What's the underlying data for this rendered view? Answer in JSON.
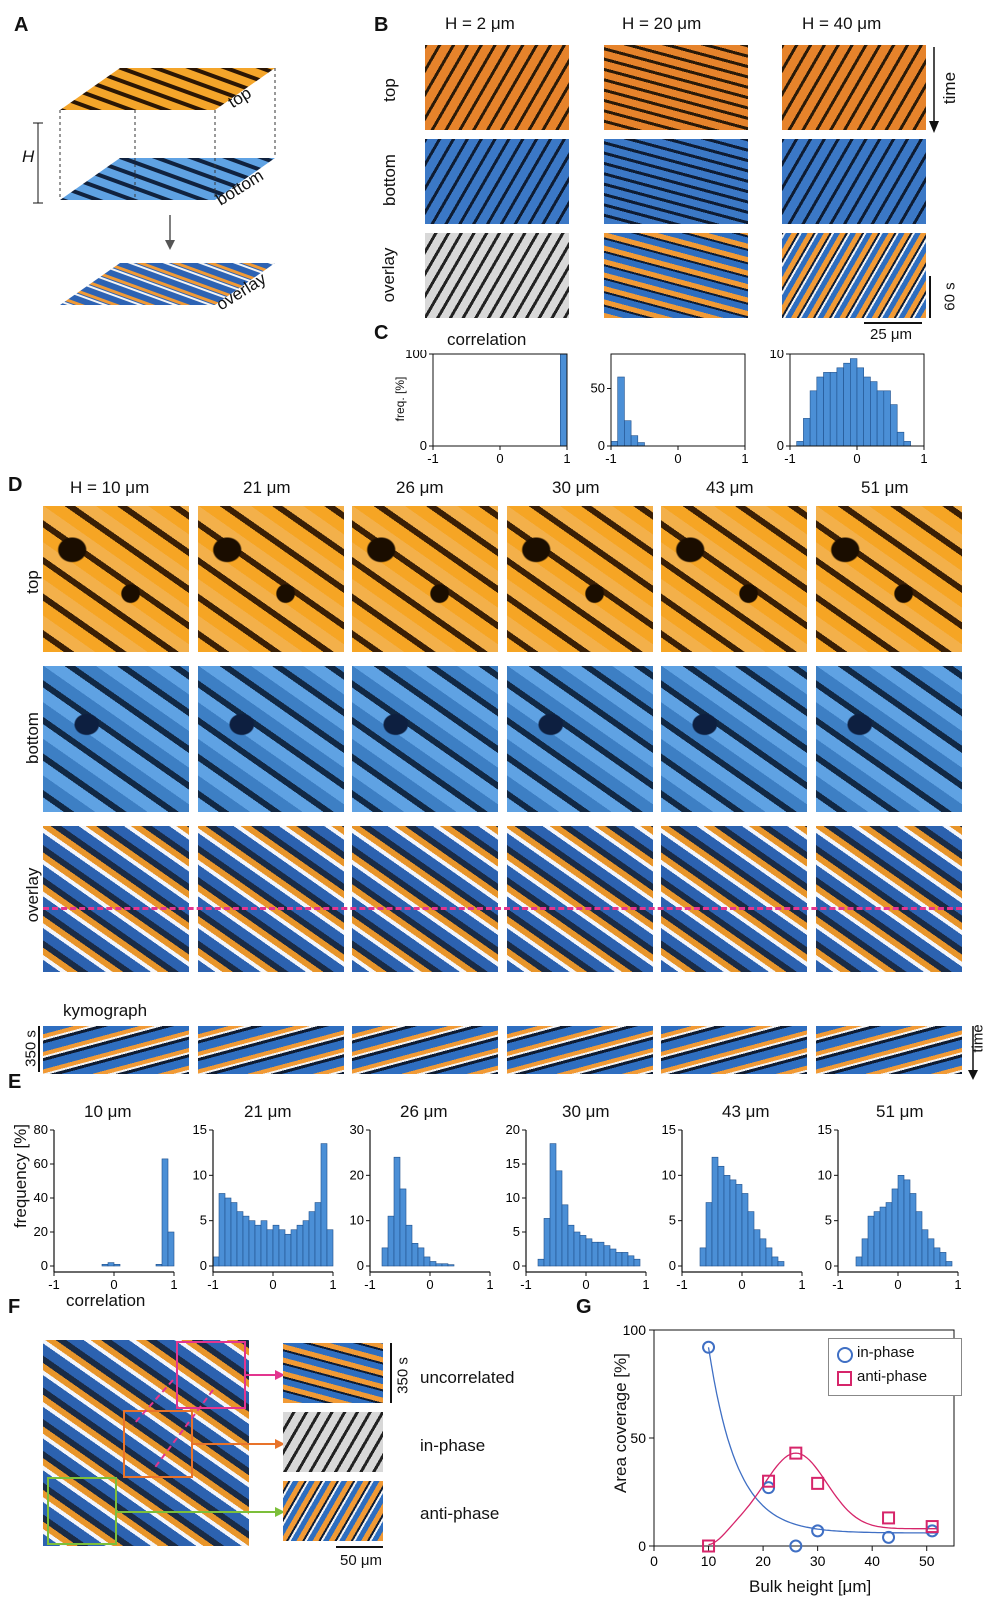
{
  "panelA": {
    "letter": "A",
    "label_top": "top",
    "label_bottom": "bottom",
    "label_overlay": "overlay",
    "label_H": "H"
  },
  "panelB": {
    "letter": "B",
    "col_headers": [
      "H = 2 μm",
      "H = 20 μm",
      "H = 40 μm"
    ],
    "row_labels": [
      "top",
      "bottom",
      "overlay"
    ],
    "time_label": "time",
    "time_scale": "60 s",
    "space_scale": "25 μm"
  },
  "panelC": {
    "letter": "C",
    "title": "correlation",
    "ylabel": "freq. [%]"
  },
  "panelD": {
    "letter": "D",
    "col_headers": [
      "H = 10 μm",
      "21 μm",
      "26 μm",
      "30 μm",
      "43 μm",
      "51 μm"
    ],
    "row_labels": [
      "top",
      "bottom",
      "overlay"
    ],
    "kymograph_label": "kymograph",
    "time_scale": "350 s",
    "time_label": "time"
  },
  "panelE": {
    "letter": "E",
    "titles": [
      "10 μm",
      "21 μm",
      "26 μm",
      "30 μm",
      "43 μm",
      "51 μm"
    ],
    "ylabel": "frequency [%]",
    "xlabel": "correlation"
  },
  "panelF": {
    "letter": "F",
    "labels": [
      "uncorrelated",
      "in-phase",
      "anti-phase"
    ],
    "time_scale": "350 s",
    "space_scale": "50 μm"
  },
  "panelG": {
    "letter": "G",
    "ylabel": "Area coverage [%]",
    "xlabel": "Bulk height [μm]",
    "legend": [
      "in-phase",
      "anti-phase"
    ]
  },
  "colors": {
    "in_phase": "#3f6fc4",
    "anti_phase": "#d6256a",
    "bar": "#4b8fd6",
    "dash": "#e3358f"
  },
  "chart_data": [
    {
      "type": "bar",
      "panel": "C1",
      "xlim": [
        -1,
        1
      ],
      "ylim": [
        0,
        100
      ],
      "xticks": [
        -1,
        0,
        1
      ],
      "yticks": [
        0,
        100
      ],
      "x": [
        -0.95,
        -0.85,
        -0.75,
        -0.65,
        -0.55,
        -0.45,
        -0.35,
        -0.25,
        -0.15,
        -0.05,
        0.05,
        0.15,
        0.25,
        0.35,
        0.45,
        0.55,
        0.65,
        0.75,
        0.85,
        0.95
      ],
      "values": [
        0,
        0,
        0,
        0,
        0,
        0,
        0,
        0,
        0,
        0,
        0,
        0,
        0,
        0,
        0,
        0,
        0,
        0,
        0,
        100
      ]
    },
    {
      "type": "bar",
      "panel": "C2",
      "xlim": [
        -1,
        1
      ],
      "ylim": [
        0,
        80
      ],
      "xticks": [
        -1,
        0,
        1
      ],
      "yticks": [
        0,
        50
      ],
      "x": [
        -0.95,
        -0.85,
        -0.75,
        -0.65,
        -0.55,
        -0.45,
        -0.35,
        -0.25,
        -0.15,
        -0.05,
        0.05,
        0.15,
        0.25,
        0.35,
        0.45,
        0.55,
        0.65,
        0.75,
        0.85,
        0.95
      ],
      "values": [
        4,
        60,
        22,
        9,
        3,
        0,
        0,
        0,
        0,
        0,
        0,
        0,
        0,
        0,
        0,
        0,
        0,
        0,
        0,
        0
      ]
    },
    {
      "type": "bar",
      "panel": "C3",
      "xlim": [
        -1,
        1
      ],
      "ylim": [
        0,
        10
      ],
      "xticks": [
        -1,
        0,
        1
      ],
      "yticks": [
        0,
        10
      ],
      "x": [
        -0.95,
        -0.85,
        -0.75,
        -0.65,
        -0.55,
        -0.45,
        -0.35,
        -0.25,
        -0.15,
        -0.05,
        0.05,
        0.15,
        0.25,
        0.35,
        0.45,
        0.55,
        0.65,
        0.75,
        0.85,
        0.95
      ],
      "values": [
        0,
        0.5,
        3,
        6,
        7.5,
        8,
        8,
        8.5,
        9,
        9.5,
        8.5,
        7.5,
        7,
        6,
        6,
        4.5,
        1.5,
        0.5,
        0,
        0
      ]
    },
    {
      "type": "bar",
      "panel": "E1",
      "title": "10 μm",
      "xlim": [
        -1,
        1
      ],
      "ylim": [
        0,
        80
      ],
      "yticks": [
        0,
        20,
        40,
        60,
        80
      ],
      "x": [
        -0.95,
        -0.85,
        -0.75,
        -0.65,
        -0.55,
        -0.45,
        -0.35,
        -0.25,
        -0.15,
        -0.05,
        0.05,
        0.15,
        0.25,
        0.35,
        0.45,
        0.55,
        0.65,
        0.75,
        0.85,
        0.95
      ],
      "values": [
        0,
        0,
        0,
        0,
        0,
        0,
        0,
        0,
        1,
        2,
        1,
        0,
        0,
        0,
        0,
        0,
        0,
        1,
        63,
        20
      ]
    },
    {
      "type": "bar",
      "panel": "E2",
      "title": "21 μm",
      "xlim": [
        -1,
        1
      ],
      "ylim": [
        0,
        15
      ],
      "yticks": [
        0,
        5,
        10,
        15
      ],
      "x": [
        -0.95,
        -0.85,
        -0.75,
        -0.65,
        -0.55,
        -0.45,
        -0.35,
        -0.25,
        -0.15,
        -0.05,
        0.05,
        0.15,
        0.25,
        0.35,
        0.45,
        0.55,
        0.65,
        0.75,
        0.85,
        0.95
      ],
      "values": [
        1,
        8,
        7.5,
        7,
        6,
        5.5,
        5,
        4.5,
        5,
        4,
        4.5,
        4,
        3.5,
        4,
        4.5,
        5,
        6,
        7,
        13.5,
        4
      ]
    },
    {
      "type": "bar",
      "panel": "E3",
      "title": "26 μm",
      "xlim": [
        -1,
        1
      ],
      "ylim": [
        0,
        30
      ],
      "yticks": [
        0,
        10,
        20,
        30
      ],
      "x": [
        -0.95,
        -0.85,
        -0.75,
        -0.65,
        -0.55,
        -0.45,
        -0.35,
        -0.25,
        -0.15,
        -0.05,
        0.05,
        0.15,
        0.25,
        0.35,
        0.45,
        0.55,
        0.65,
        0.75,
        0.85,
        0.95
      ],
      "values": [
        0,
        0,
        4,
        11,
        24,
        17,
        9,
        5,
        4,
        2,
        1,
        0.5,
        0.5,
        0.3,
        0,
        0,
        0,
        0,
        0,
        0
      ]
    },
    {
      "type": "bar",
      "panel": "E4",
      "title": "30 μm",
      "xlim": [
        -1,
        1
      ],
      "ylim": [
        0,
        20
      ],
      "yticks": [
        0,
        5,
        10,
        15,
        20
      ],
      "x": [
        -0.95,
        -0.85,
        -0.75,
        -0.65,
        -0.55,
        -0.45,
        -0.35,
        -0.25,
        -0.15,
        -0.05,
        0.05,
        0.15,
        0.25,
        0.35,
        0.45,
        0.55,
        0.65,
        0.75,
        0.85,
        0.95
      ],
      "values": [
        0,
        0,
        1,
        7,
        18,
        14,
        9,
        6,
        5,
        4.5,
        4,
        3.5,
        3.5,
        3,
        2.5,
        2,
        2,
        1.5,
        1,
        0
      ]
    },
    {
      "type": "bar",
      "panel": "E5",
      "title": "43 μm",
      "xlim": [
        -1,
        1
      ],
      "ylim": [
        0,
        15
      ],
      "yticks": [
        0,
        5,
        10,
        15
      ],
      "x": [
        -0.95,
        -0.85,
        -0.75,
        -0.65,
        -0.55,
        -0.45,
        -0.35,
        -0.25,
        -0.15,
        -0.05,
        0.05,
        0.15,
        0.25,
        0.35,
        0.45,
        0.55,
        0.65,
        0.75,
        0.85,
        0.95
      ],
      "values": [
        0,
        0,
        0,
        2,
        7,
        12,
        11,
        10,
        9.5,
        9,
        8,
        6,
        4,
        3,
        2,
        1,
        0.5,
        0,
        0,
        0
      ]
    },
    {
      "type": "bar",
      "panel": "E6",
      "title": "51 μm",
      "xlim": [
        -1,
        1
      ],
      "ylim": [
        0,
        15
      ],
      "yticks": [
        0,
        5,
        10,
        15
      ],
      "x": [
        -0.95,
        -0.85,
        -0.75,
        -0.65,
        -0.55,
        -0.45,
        -0.35,
        -0.25,
        -0.15,
        -0.05,
        0.05,
        0.15,
        0.25,
        0.35,
        0.45,
        0.55,
        0.65,
        0.75,
        0.85,
        0.95
      ],
      "values": [
        0,
        0,
        0,
        1,
        3,
        5.5,
        6,
        6.5,
        7,
        8.5,
        10,
        9.5,
        8,
        6,
        4,
        3,
        2,
        1.5,
        0.5,
        0
      ]
    },
    {
      "type": "scatter",
      "panel": "G",
      "xlim": [
        0,
        55
      ],
      "ylim": [
        0,
        100
      ],
      "xticks": [
        0,
        10,
        20,
        30,
        40,
        50
      ],
      "yticks": [
        0,
        50,
        100
      ],
      "series": [
        {
          "name": "in-phase",
          "x": [
            10,
            21,
            26,
            30,
            43,
            51
          ],
          "values": [
            92,
            27,
            0,
            7,
            4,
            7
          ]
        },
        {
          "name": "anti-phase",
          "x": [
            10,
            21,
            26,
            30,
            43,
            51
          ],
          "values": [
            0,
            30,
            43,
            29,
            13,
            9
          ]
        }
      ]
    }
  ]
}
